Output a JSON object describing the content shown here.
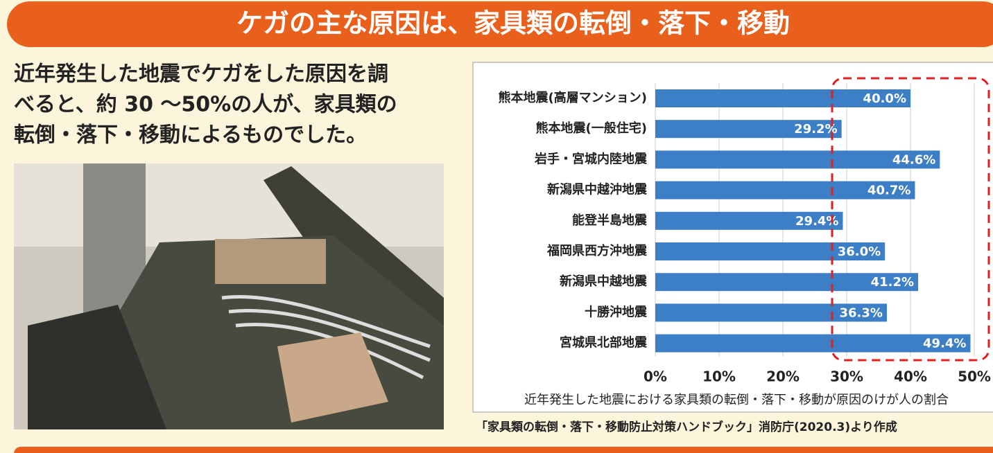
{
  "header": {
    "title": "ケガの主な原因は、家具類の転倒・落下・移動"
  },
  "intro": {
    "lines": [
      "近年発生した地震でケガをした原因を調",
      "べると、約 30 〜50%の人が、家具類の",
      "転倒・落下・移動によるものでした。"
    ]
  },
  "chart_data": {
    "type": "hbar",
    "caption": "近年発生した地震における家具類の転倒・落下・移動が原因のけが人の割合",
    "categories": [
      "熊本地震(高層マンション)",
      "熊本地震(一般住宅)",
      "岩手・宮城内陸地震",
      "新潟県中越沖地震",
      "能登半島地震",
      "福岡県西方沖地震",
      "新潟県中越地震",
      "十勝沖地震",
      "宮城県北部地震"
    ],
    "values": [
      40.0,
      29.2,
      44.6,
      40.7,
      29.4,
      36.0,
      41.2,
      36.3,
      49.4
    ],
    "value_labels": [
      "40.0%",
      "29.2%",
      "44.6%",
      "40.7%",
      "29.4%",
      "36.0%",
      "41.2%",
      "36.3%",
      "49.4%"
    ],
    "color": "#3d7fc6",
    "xlim": [
      0,
      50
    ],
    "xticks": [
      {
        "value": 0,
        "label": "0%"
      },
      {
        "value": 10,
        "label": "10%"
      },
      {
        "value": 20,
        "label": "20%"
      },
      {
        "value": 30,
        "label": "30%"
      },
      {
        "value": 40,
        "label": "40%"
      },
      {
        "value": 50,
        "label": "50%"
      }
    ],
    "grid": true
  },
  "source": "「家具類の転倒・落下・移動防止対策ハンドブック」消防庁(2020.3)より作成"
}
